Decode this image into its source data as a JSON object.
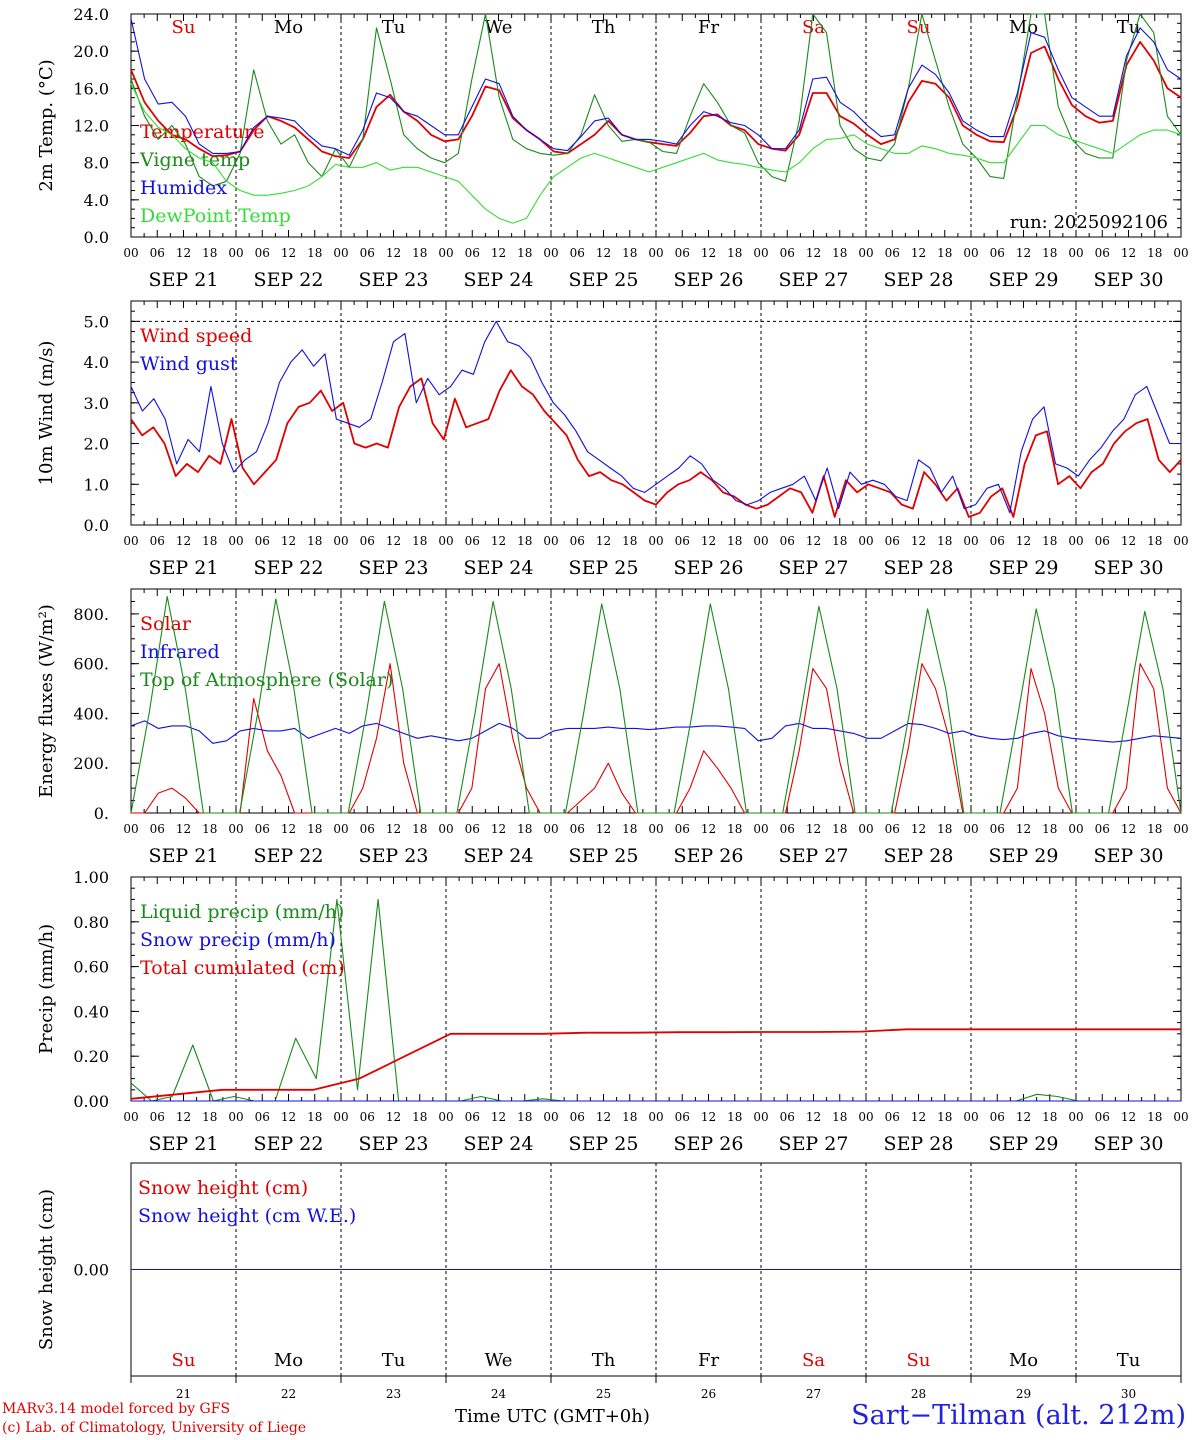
{
  "colors": {
    "red": "#e00000",
    "green": "#1a8a1a",
    "blue": "#1010e0",
    "lightgreen": "#33dd33",
    "black": "#000000"
  },
  "days": {
    "dates": [
      "SEP 21",
      "SEP 22",
      "SEP 23",
      "SEP 24",
      "SEP 25",
      "SEP 26",
      "SEP 27",
      "SEP 28",
      "SEP 29",
      "SEP 30"
    ],
    "weekdays": [
      "Su",
      "Mo",
      "Tu",
      "We",
      "Th",
      "Fr",
      "Sa",
      "Su",
      "Mo",
      "Tu"
    ],
    "weekday_colors": [
      "red",
      "black",
      "black",
      "black",
      "black",
      "black",
      "red",
      "red",
      "black",
      "black"
    ],
    "day_numbers": [
      "21",
      "22",
      "23",
      "24",
      "25",
      "26",
      "27",
      "28",
      "29",
      "30"
    ],
    "hour_ticks": [
      "00",
      "06",
      "12",
      "18"
    ],
    "final_tick": "00"
  },
  "run_label": "run: 2025092106",
  "footer": {
    "model_line": "MARv3.14 model forced by GFS",
    "credit_line": "(c) Lab. of Climatology, University of Liege",
    "time_axis": "Time UTC (GMT+0h)",
    "station": "Sart−Tilman (alt. 212m)"
  },
  "chart_data": [
    {
      "type": "line",
      "ylabel": "2m Temp. (°C)",
      "ylim": [
        0,
        24
      ],
      "yticks": [
        "0.0",
        "4.0",
        "8.0",
        "12.0",
        "16.0",
        "20.0",
        "24.0"
      ],
      "xlabel": "",
      "series": [
        {
          "name": "Temperature",
          "color": "red",
          "values": [
            18,
            14.5,
            12.5,
            11,
            10.5,
            9.5,
            8.7,
            8.8,
            9.2,
            11.5,
            13,
            12.5,
            11.8,
            10.5,
            9.2,
            8.7,
            8.5,
            10.5,
            14,
            15.3,
            13.5,
            12.5,
            11,
            10.3,
            10.5,
            13,
            16.2,
            15.8,
            12.8,
            11.5,
            10.5,
            9.2,
            9,
            10,
            11,
            12.5,
            11,
            10.5,
            10.2,
            10,
            9.8,
            11.2,
            13,
            13.2,
            12,
            11.5,
            10,
            9.5,
            9.3,
            11,
            15.5,
            15.5,
            13,
            12.2,
            11,
            10,
            10.5,
            14.5,
            16.8,
            16.5,
            15,
            12,
            11,
            10.3,
            10.2,
            14,
            19.8,
            20.5,
            17,
            14.2,
            13,
            12.3,
            12.5,
            18.5,
            21,
            19,
            16,
            15
          ]
        },
        {
          "name": "Vigne temp",
          "color": "green",
          "values": [
            17,
            13,
            10.5,
            12,
            10,
            6.5,
            5.5,
            6,
            9,
            18,
            12.5,
            10,
            11,
            8,
            6.5,
            9.5,
            7.5,
            10.5,
            22.5,
            17,
            11,
            9.5,
            8.5,
            8,
            9,
            17,
            24,
            15,
            10.5,
            9.5,
            9,
            8.8,
            9,
            11,
            15.3,
            12,
            10.3,
            10.5,
            10.2,
            9.2,
            9,
            13,
            16.5,
            14.5,
            12,
            11.2,
            8,
            6.5,
            6,
            12.5,
            24,
            22,
            12,
            9.5,
            8.5,
            8.2,
            10,
            16,
            26,
            19,
            14,
            10,
            8.5,
            6.5,
            6.3,
            15,
            27,
            25,
            14,
            10.5,
            9,
            8.5,
            8.5,
            19,
            24,
            22,
            13,
            11
          ]
        },
        {
          "name": "Humidex",
          "color": "blue",
          "values": [
            23.5,
            17,
            14.3,
            14.5,
            13,
            10,
            9,
            9,
            9.2,
            11.8,
            13,
            12.8,
            12.5,
            11,
            9.8,
            9.5,
            8.8,
            11.5,
            15.5,
            15,
            13.5,
            13,
            12,
            11,
            11,
            14,
            17,
            16.5,
            13,
            11.5,
            10.5,
            9.5,
            9.3,
            10.8,
            12.5,
            12.8,
            11,
            10.5,
            10.5,
            10.3,
            10,
            12,
            13.5,
            13,
            12.3,
            12,
            11,
            9.5,
            9.5,
            11.5,
            17,
            17.2,
            14.5,
            13.5,
            12,
            10.8,
            11,
            16,
            18.5,
            17.5,
            15.5,
            12.5,
            11.5,
            10.8,
            10.8,
            15.5,
            22,
            21.5,
            18,
            15,
            14,
            13,
            13,
            19.5,
            22.5,
            21,
            18,
            17
          ]
        },
        {
          "name": "DewPoint Temp",
          "color": "lightgreen",
          "values": [
            16.5,
            13.5,
            11.8,
            11,
            9.5,
            8.5,
            8,
            6,
            5,
            4.5,
            4.5,
            4.7,
            5,
            5.5,
            6.5,
            7.8,
            7.5,
            7.5,
            8,
            7.2,
            7.5,
            7.5,
            7,
            6.5,
            6,
            4.5,
            3,
            2,
            1.5,
            2,
            4.5,
            6.5,
            7.5,
            8.5,
            9,
            8.5,
            8,
            7.5,
            7,
            7.5,
            8,
            8.5,
            9,
            8.3,
            8,
            7.8,
            7.5,
            7.2,
            7,
            8,
            9.5,
            10.5,
            10.6,
            11,
            10,
            9.5,
            9,
            9,
            9.8,
            9.5,
            9,
            8.8,
            8.5,
            8,
            8,
            10,
            12,
            12,
            11,
            10.5,
            10,
            9.5,
            9,
            10,
            11,
            11.5,
            11.5,
            11
          ]
        }
      ]
    },
    {
      "type": "line",
      "ylabel": "10m Wind (m/s)",
      "ylim": [
        0,
        5.5
      ],
      "yticks": [
        "0.0",
        "1.0",
        "2.0",
        "3.0",
        "4.0",
        "5.0"
      ],
      "dashed_ref": 5.0,
      "series": [
        {
          "name": "Wind speed",
          "color": "red",
          "values": [
            2.6,
            2.2,
            2.4,
            2.0,
            1.2,
            1.5,
            1.3,
            1.7,
            1.5,
            2.6,
            1.4,
            1.0,
            1.3,
            1.6,
            2.5,
            2.9,
            3.0,
            3.3,
            2.8,
            3.0,
            2.0,
            1.9,
            2.0,
            1.9,
            2.9,
            3.4,
            3.6,
            2.5,
            2.1,
            3.1,
            2.4,
            2.5,
            2.6,
            3.3,
            3.8,
            3.4,
            3.2,
            2.8,
            2.5,
            2.2,
            1.6,
            1.2,
            1.3,
            1.1,
            1.0,
            0.8,
            0.6,
            0.5,
            0.8,
            1.0,
            1.1,
            1.3,
            1.1,
            0.8,
            0.7,
            0.5,
            0.4,
            0.5,
            0.7,
            0.9,
            0.8,
            0.3,
            1.2,
            0.2,
            1.1,
            0.8,
            1.0,
            0.9,
            0.8,
            0.5,
            0.4,
            1.3,
            1.0,
            0.6,
            0.9,
            0.2,
            0.3,
            0.7,
            0.9,
            0.2,
            1.5,
            2.2,
            2.3,
            1.0,
            1.2,
            0.9,
            1.3,
            1.5,
            2.0,
            2.3,
            2.5,
            2.6,
            1.6,
            1.3,
            1.6
          ]
        },
        {
          "name": "Wind gust",
          "color": "blue",
          "values": [
            3.4,
            2.8,
            3.1,
            2.6,
            1.5,
            2.1,
            1.8,
            3.4,
            2.0,
            1.3,
            1.6,
            1.8,
            2.5,
            3.5,
            4.0,
            4.3,
            3.9,
            4.2,
            2.6,
            2.5,
            2.4,
            2.6,
            3.5,
            4.5,
            4.7,
            3.0,
            3.6,
            3.2,
            3.4,
            3.8,
            3.7,
            4.5,
            5.0,
            4.5,
            4.4,
            4.1,
            3.5,
            3.0,
            2.7,
            2.3,
            1.8,
            1.6,
            1.4,
            1.2,
            0.9,
            0.8,
            1.0,
            1.2,
            1.4,
            1.7,
            1.5,
            1.1,
            0.9,
            0.6,
            0.5,
            0.6,
            0.8,
            0.9,
            1.0,
            1.2,
            0.6,
            1.4,
            0.4,
            1.3,
            1.0,
            1.1,
            1.0,
            0.7,
            0.6,
            1.6,
            1.4,
            0.8,
            1.2,
            0.4,
            0.5,
            0.9,
            1.0,
            0.3,
            1.8,
            2.6,
            2.9,
            1.5,
            1.4,
            1.2,
            1.6,
            1.9,
            2.3,
            2.6,
            3.2,
            3.4,
            2.7,
            2.0,
            2.0
          ]
        }
      ]
    },
    {
      "type": "line",
      "ylabel": "Energy fluxes (W/m²)",
      "ylim": [
        0,
        900
      ],
      "yticks": [
        "0.",
        "200.",
        "400.",
        "600.",
        "800."
      ],
      "series": [
        {
          "name": "Solar",
          "color": "red",
          "values": [
            0,
            0,
            80,
            100,
            60,
            0,
            0,
            0,
            0,
            460,
            250,
            150,
            0,
            0,
            0,
            0,
            0,
            100,
            300,
            600,
            200,
            0,
            0,
            0,
            0,
            100,
            500,
            600,
            300,
            100,
            0,
            0,
            0,
            50,
            100,
            200,
            80,
            0,
            0,
            0,
            0,
            100,
            250,
            180,
            100,
            0,
            0,
            0,
            0,
            250,
            580,
            500,
            200,
            0,
            0,
            0,
            0,
            260,
            600,
            500,
            300,
            0,
            0,
            0,
            0,
            100,
            580,
            400,
            100,
            0,
            0,
            0,
            0,
            100,
            600,
            500,
            100,
            0
          ]
        },
        {
          "name": "Infrared",
          "color": "blue",
          "values": [
            350,
            370,
            340,
            350,
            350,
            330,
            280,
            290,
            330,
            340,
            330,
            330,
            340,
            300,
            320,
            340,
            320,
            350,
            360,
            340,
            320,
            300,
            310,
            300,
            290,
            300,
            330,
            360,
            340,
            300,
            300,
            330,
            340,
            340,
            340,
            345,
            340,
            340,
            335,
            340,
            345,
            345,
            350,
            350,
            345,
            340,
            290,
            300,
            350,
            360,
            340,
            340,
            330,
            320,
            300,
            300,
            330,
            360,
            355,
            340,
            320,
            330,
            310,
            300,
            295,
            300,
            320,
            330,
            310,
            300,
            295,
            290,
            285,
            290,
            300,
            310,
            305,
            300
          ]
        },
        {
          "name": "Top of Atmosphere (Solar)",
          "color": "green",
          "values": [
            0,
            400,
            870,
            500,
            0,
            0,
            0,
            400,
            860,
            500,
            0,
            0,
            0,
            400,
            850,
            500,
            0,
            0,
            0,
            400,
            850,
            500,
            0,
            0,
            0,
            400,
            840,
            500,
            0,
            0,
            0,
            400,
            840,
            500,
            0,
            0,
            0,
            400,
            830,
            500,
            0,
            0,
            0,
            400,
            820,
            500,
            0,
            0,
            0,
            400,
            820,
            500,
            0,
            0,
            0,
            400,
            810,
            500,
            0
          ]
        }
      ]
    },
    {
      "type": "line",
      "ylabel": "Precip (mm/h)",
      "ylim": [
        0,
        1.0
      ],
      "yticks": [
        "0.00",
        "0.20",
        "0.40",
        "0.60",
        "0.80",
        "1.00"
      ],
      "series": [
        {
          "name": "Liquid precip (mm/h)",
          "color": "green",
          "values": [
            0.08,
            0,
            0.02,
            0.25,
            0,
            0.02,
            0,
            0,
            0.28,
            0.1,
            0.9,
            0.05,
            0.9,
            0,
            0,
            0,
            0,
            0.02,
            0,
            0,
            0.01,
            0,
            0,
            0,
            0,
            0,
            0,
            0,
            0,
            0,
            0,
            0,
            0,
            0,
            0,
            0,
            0,
            0,
            0,
            0,
            0,
            0,
            0,
            0,
            0.03,
            0.02,
            0,
            0,
            0,
            0,
            0,
            0
          ]
        },
        {
          "name": "Snow precip (mm/h)",
          "color": "blue",
          "values": [
            0,
            0,
            0,
            0,
            0,
            0,
            0,
            0,
            0,
            0
          ]
        },
        {
          "name": "Total cumulated (cm)",
          "color": "red",
          "values": [
            0.01,
            0.03,
            0.05,
            0.05,
            0.05,
            0.1,
            0.2,
            0.3,
            0.3,
            0.3,
            0.305,
            0.305,
            0.307,
            0.307,
            0.308,
            0.308,
            0.31,
            0.32,
            0.32,
            0.32,
            0.32,
            0.32,
            0.32,
            0.32
          ]
        }
      ]
    },
    {
      "type": "line",
      "ylabel": "Snow height (cm)",
      "ylim": [
        -1,
        1
      ],
      "yticks": [
        "0.00"
      ],
      "series": [
        {
          "name": "Snow height (cm)",
          "color": "red",
          "values": [
            0,
            0
          ]
        },
        {
          "name": "Snow height (cm W.E.)",
          "color": "blue",
          "values": [
            0,
            0
          ]
        }
      ]
    }
  ]
}
